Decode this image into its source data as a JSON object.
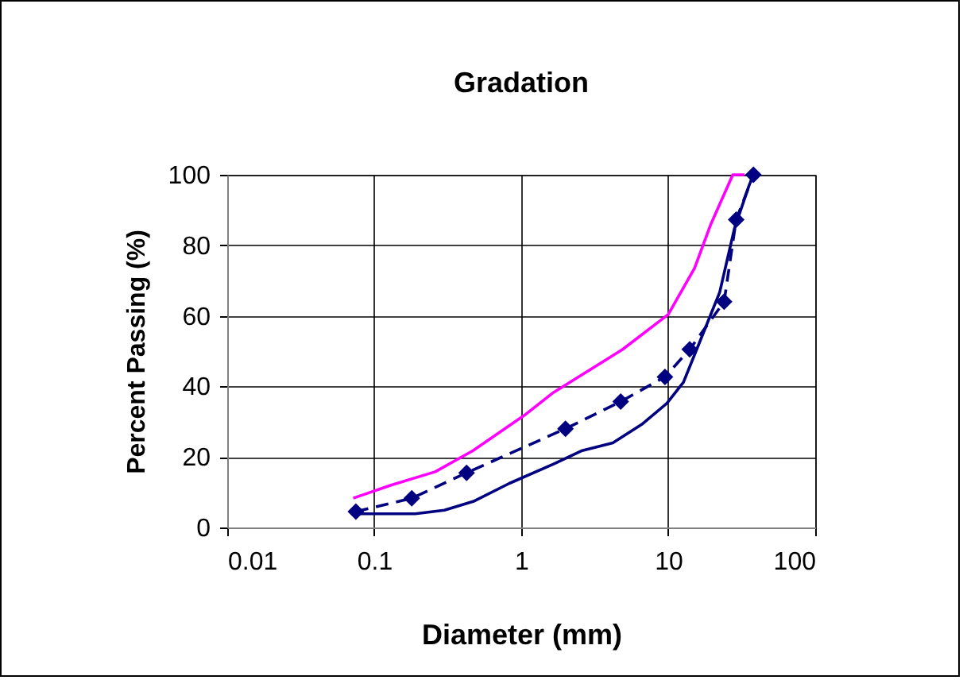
{
  "chart_data": {
    "type": "line",
    "title": "Gradation",
    "xlabel": "Diameter (mm)",
    "ylabel": "Percent Passing (%)",
    "log": "x",
    "grid": true,
    "xlim": [
      0.01,
      100
    ],
    "xticks": [
      0.01,
      0.1,
      1,
      10,
      100
    ],
    "ylim": [
      0,
      100
    ],
    "yticks": [
      0,
      20,
      40,
      60,
      80,
      100
    ],
    "series": [
      {
        "color": "#ff00ff",
        "line_style": "solid",
        "marker": "none",
        "x": [
          0.072,
          0.13,
          0.26,
          0.47,
          1.05,
          1.66,
          4.9,
          10,
          15.1,
          19.5,
          27.5,
          33
        ],
        "values": [
          8.3,
          12,
          15.8,
          21.8,
          31.8,
          38.3,
          50.5,
          60.4,
          73.5,
          86,
          100,
          100
        ]
      },
      {
        "color": "#000080",
        "line_style": "dashed",
        "marker": "diamond",
        "x": [
          0.075,
          0.18,
          0.425,
          2,
          4.75,
          9.5,
          14,
          24,
          29,
          38
        ],
        "values": [
          4.5,
          8.3,
          15.5,
          28,
          35.7,
          42.7,
          50.5,
          64,
          87.3,
          100
        ]
      },
      {
        "color": "#000080",
        "line_style": "solid",
        "marker": "none",
        "x": [
          0.072,
          0.19,
          0.3,
          0.48,
          0.83,
          1.66,
          2.6,
          4.2,
          6.6,
          9.8,
          12.7,
          16.6,
          22.4,
          28.2,
          35.5,
          38
        ],
        "values": [
          3.9,
          3.9,
          4.9,
          7.5,
          12.5,
          18,
          21.8,
          24,
          29.2,
          35.2,
          41.2,
          53.2,
          66.7,
          84.7,
          97,
          100
        ]
      }
    ]
  }
}
